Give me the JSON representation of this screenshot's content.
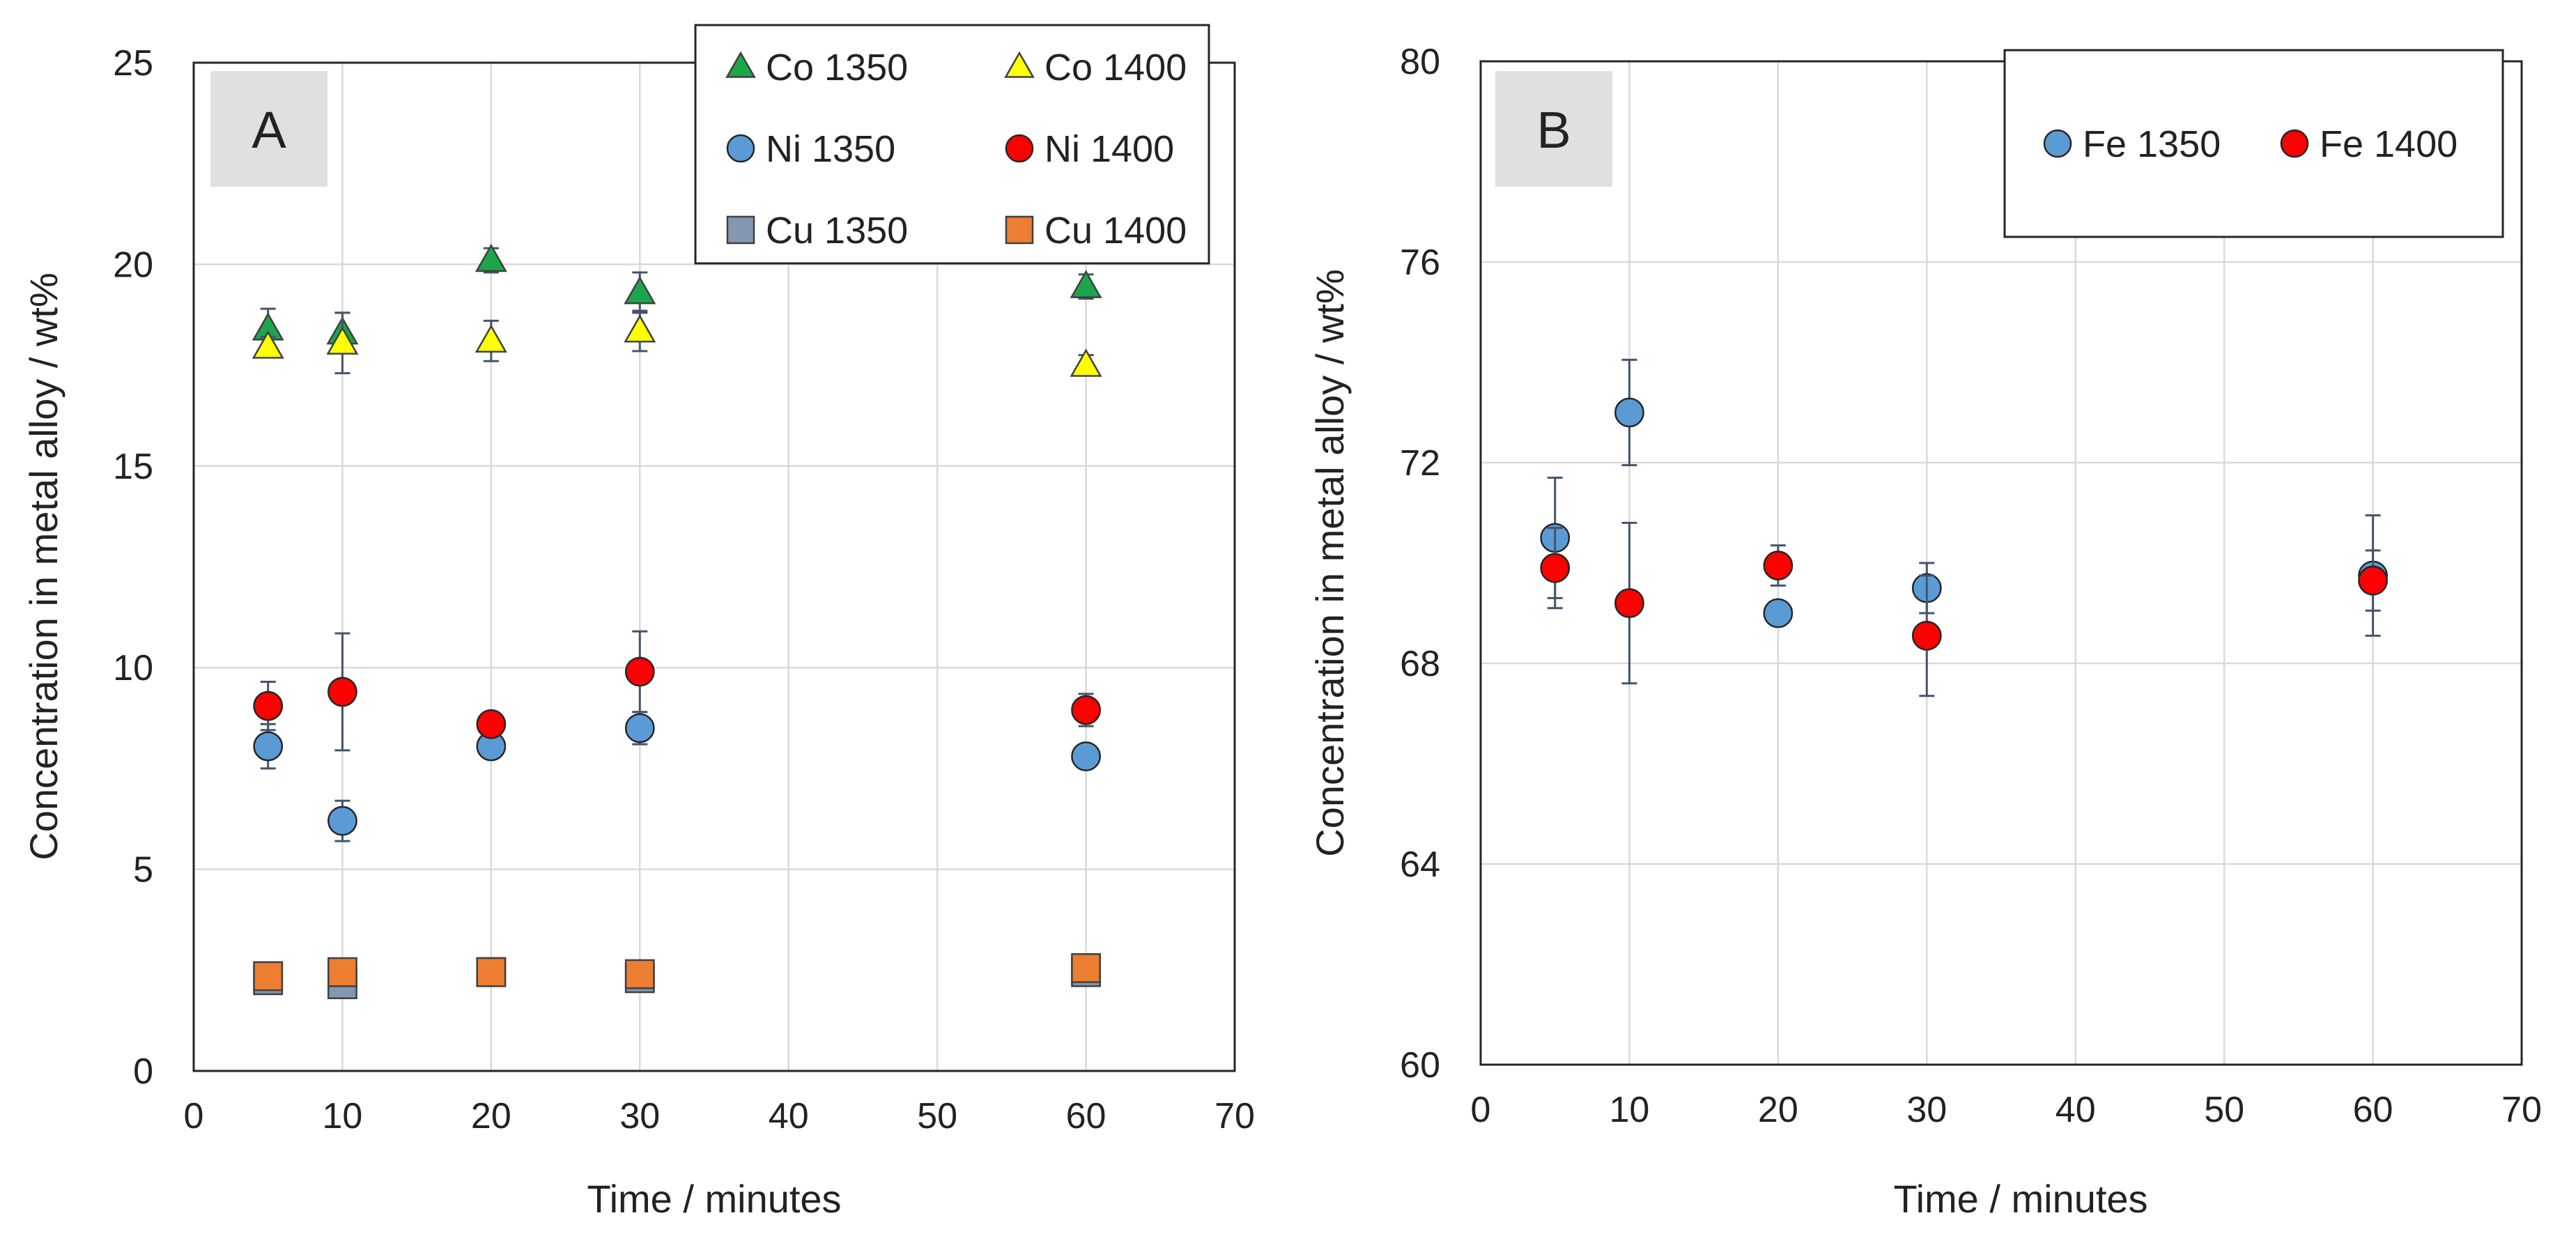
{
  "chart_data": [
    {
      "type": "scatter",
      "panel_label": "A",
      "xlabel": "Time / minutes",
      "ylabel": "Concentration in metal alloy / wt%",
      "xlim": [
        0,
        70
      ],
      "ylim": [
        0,
        25
      ],
      "xticks": [
        "0",
        "10",
        "20",
        "30",
        "40",
        "50",
        "60",
        "70"
      ],
      "yticks": [
        "0",
        "5",
        "10",
        "15",
        "20",
        "25"
      ],
      "grid": true,
      "legend_position": "top-right",
      "series": [
        {
          "name": "Co 1350",
          "marker": "triangle",
          "color": "#1aa64a",
          "points": [
            {
              "x": 5,
              "y": 18.4,
              "err": 0.5
            },
            {
              "x": 10,
              "y": 18.3,
              "err": 0.5
            },
            {
              "x": 20,
              "y": 20.1,
              "err": 0.3
            },
            {
              "x": 30,
              "y": 19.3,
              "err": 0.5
            },
            {
              "x": 60,
              "y": 19.45,
              "err": 0.3
            }
          ]
        },
        {
          "name": "Co 1400",
          "marker": "triangle",
          "color": "#ffff00",
          "points": [
            {
              "x": 5,
              "y": 17.95,
              "err": 0.25
            },
            {
              "x": 10,
              "y": 18.05,
              "err": 0.75
            },
            {
              "x": 20,
              "y": 18.1,
              "err": 0.5
            },
            {
              "x": 30,
              "y": 18.35,
              "err": 0.5
            },
            {
              "x": 60,
              "y": 17.5,
              "err": 0.25
            }
          ]
        },
        {
          "name": "Ni 1350",
          "marker": "circle",
          "color": "#5b9bd5",
          "points": [
            {
              "x": 5,
              "y": 8.05,
              "err": 0.55
            },
            {
              "x": 10,
              "y": 6.2,
              "err": 0.5
            },
            {
              "x": 20,
              "y": 8.05,
              "err": 0.2
            },
            {
              "x": 30,
              "y": 8.5,
              "err": 0.4
            },
            {
              "x": 60,
              "y": 7.8,
              "err": 0.2
            }
          ]
        },
        {
          "name": "Ni 1400",
          "marker": "circle",
          "color": "#ff0000",
          "points": [
            {
              "x": 5,
              "y": 9.05,
              "err": 0.6
            },
            {
              "x": 10,
              "y": 9.4,
              "err": 1.45
            },
            {
              "x": 20,
              "y": 8.6,
              "err": 0.2
            },
            {
              "x": 30,
              "y": 9.9,
              "err": 1.0
            },
            {
              "x": 60,
              "y": 8.95,
              "err": 0.4
            }
          ]
        },
        {
          "name": "Cu 1350",
          "marker": "square",
          "color": "#8497b0",
          "points": [
            {
              "x": 5,
              "y": 2.25,
              "err": 0.1
            },
            {
              "x": 10,
              "y": 2.15,
              "err": 0.15
            },
            {
              "x": 20,
              "y": 2.45,
              "err": 0.1
            },
            {
              "x": 30,
              "y": 2.3,
              "err": 0.1
            },
            {
              "x": 60,
              "y": 2.45,
              "err": 0.1
            }
          ]
        },
        {
          "name": "Cu 1400",
          "marker": "square",
          "color": "#ed7d31",
          "points": [
            {
              "x": 5,
              "y": 2.35,
              "err": 0.1
            },
            {
              "x": 10,
              "y": 2.45,
              "err": 0.2
            },
            {
              "x": 20,
              "y": 2.45,
              "err": 0.1
            },
            {
              "x": 30,
              "y": 2.4,
              "err": 0.1
            },
            {
              "x": 60,
              "y": 2.55,
              "err": 0.15
            }
          ]
        }
      ]
    },
    {
      "type": "scatter",
      "panel_label": "B",
      "xlabel": "Time / minutes",
      "ylabel": "Concentration in metal alloy / wt%",
      "xlim": [
        0,
        70
      ],
      "ylim": [
        60,
        80
      ],
      "xticks": [
        "0",
        "10",
        "20",
        "30",
        "40",
        "50",
        "60",
        "70"
      ],
      "yticks": [
        "60",
        "64",
        "68",
        "72",
        "76",
        "80"
      ],
      "grid": true,
      "legend_position": "top-right",
      "series": [
        {
          "name": "Fe 1350",
          "marker": "circle",
          "color": "#5b9bd5",
          "points": [
            {
              "x": 5,
              "y": 70.5,
              "err": 1.2
            },
            {
              "x": 10,
              "y": 73.0,
              "err": 1.05
            },
            {
              "x": 20,
              "y": 69.0,
              "err": 0.15
            },
            {
              "x": 30,
              "y": 69.5,
              "err": 0.5
            },
            {
              "x": 60,
              "y": 69.75,
              "err": 1.2
            }
          ]
        },
        {
          "name": "Fe 1400",
          "marker": "circle",
          "color": "#ff0000",
          "points": [
            {
              "x": 5,
              "y": 69.9,
              "err": 0.8
            },
            {
              "x": 10,
              "y": 69.2,
              "err": 1.6
            },
            {
              "x": 20,
              "y": 69.95,
              "err": 0.4
            },
            {
              "x": 30,
              "y": 68.55,
              "err": 1.2
            },
            {
              "x": 60,
              "y": 69.65,
              "err": 0.6
            }
          ]
        }
      ]
    }
  ]
}
